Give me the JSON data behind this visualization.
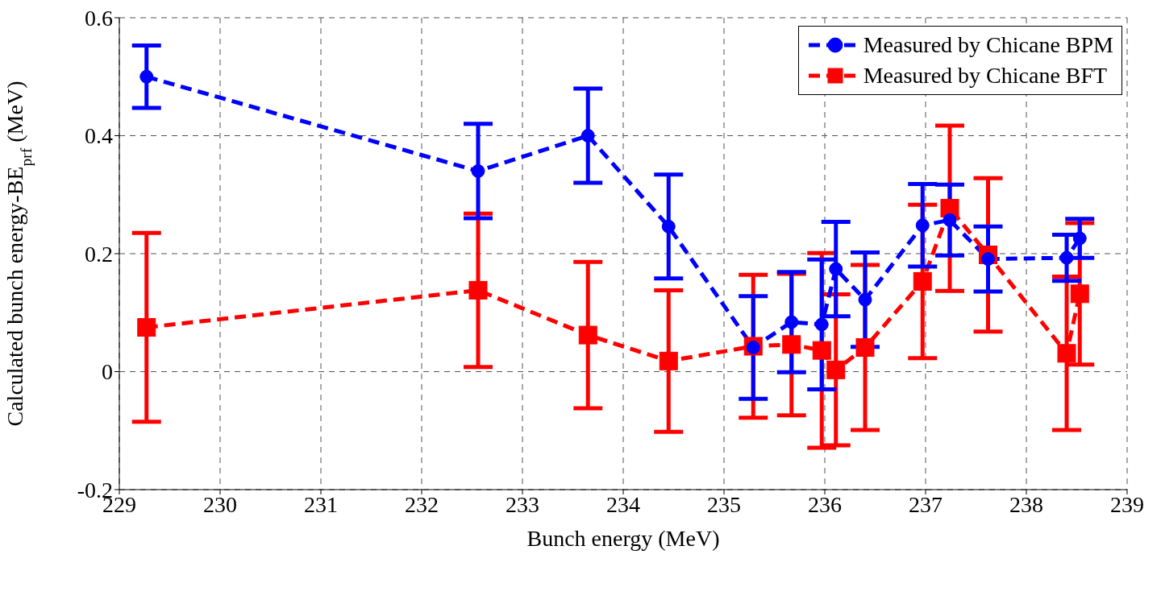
{
  "chart_data": {
    "type": "line",
    "xlabel": "Bunch energy (MeV)",
    "ylabel": "Calculated bunch energy-BE$_{prf}$ (MeV)",
    "xlim": [
      229,
      239
    ],
    "xticks": [
      229,
      230,
      231,
      232,
      233,
      234,
      235,
      236,
      237,
      238,
      239
    ],
    "ylim": [
      -0.2,
      0.6
    ],
    "yticks": [
      -0.2,
      0,
      0.2,
      0.4,
      0.6
    ],
    "grid": true,
    "legend": "top right",
    "line_style": "dashed",
    "series": [
      {
        "name": "Measured by Chicane BPM",
        "color": "#0000ff",
        "marker": "circle",
        "x": [
          229.27,
          232.56,
          233.65,
          234.45,
          235.29,
          235.67,
          235.97,
          236.11,
          236.4,
          236.97,
          237.24,
          237.62,
          238.4,
          238.53
        ],
        "values": [
          0.5,
          0.34,
          0.4,
          0.246,
          0.041,
          0.084,
          0.08,
          0.174,
          0.122,
          0.248,
          0.257,
          0.191,
          0.193,
          0.226
        ],
        "errors": [
          0.053,
          0.08,
          0.08,
          0.088,
          0.087,
          0.085,
          0.11,
          0.08,
          0.08,
          0.07,
          0.06,
          0.055,
          0.039,
          0.033
        ]
      },
      {
        "name": "Measured by Chicane BFT",
        "color": "#ff0000",
        "marker": "square",
        "x": [
          229.27,
          232.56,
          233.65,
          234.45,
          235.29,
          235.67,
          235.97,
          236.11,
          236.4,
          236.97,
          237.24,
          237.62,
          238.4,
          238.53
        ],
        "values": [
          0.075,
          0.138,
          0.062,
          0.018,
          0.043,
          0.046,
          0.036,
          0.003,
          0.041,
          0.153,
          0.277,
          0.198,
          0.031,
          0.132
        ],
        "errors": [
          0.16,
          0.13,
          0.124,
          0.12,
          0.121,
          0.12,
          0.165,
          0.128,
          0.14,
          0.13,
          0.14,
          0.13,
          0.13,
          0.12
        ]
      }
    ]
  }
}
